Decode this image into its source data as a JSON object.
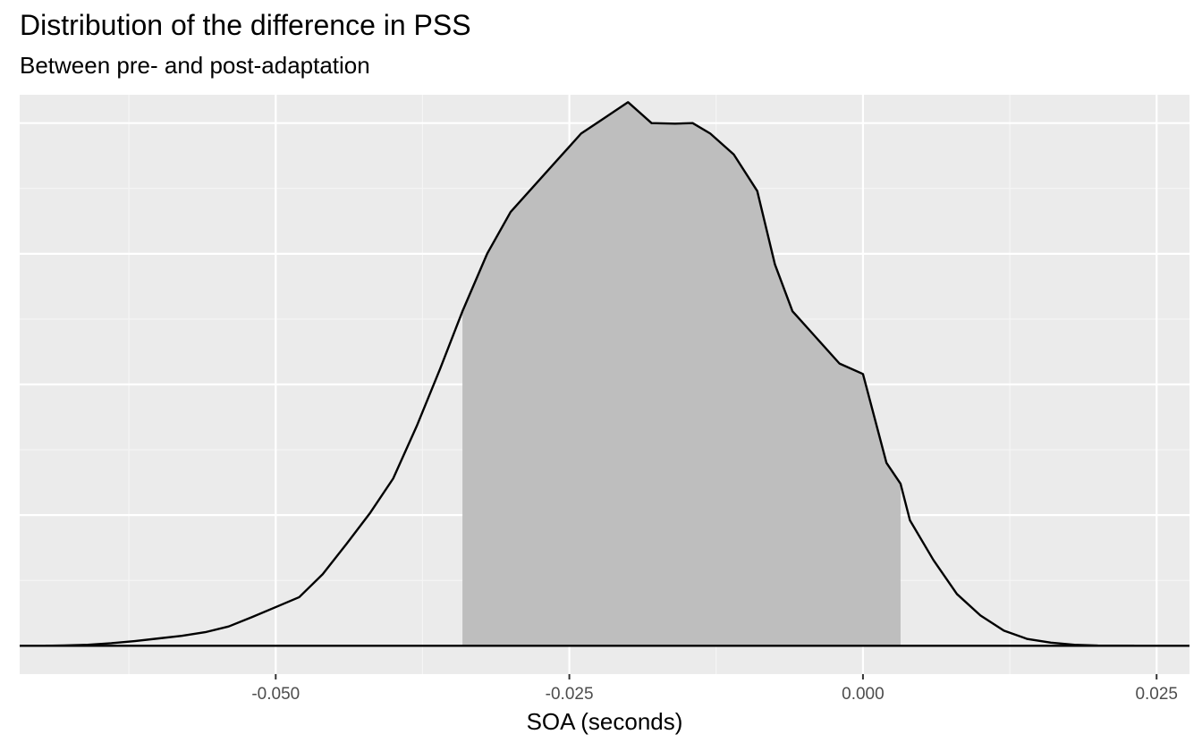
{
  "chart_data": {
    "type": "area",
    "title": "Distribution of the difference in PSS",
    "subtitle": "Between pre- and post-adaptation",
    "xlabel": "SOA (seconds)",
    "ylabel": "",
    "xlim": [
      -0.0718,
      0.0278
    ],
    "ylim": [
      -0.0542,
      1.0542
    ],
    "x_ticks": [
      -0.05,
      -0.025,
      0.0,
      0.025
    ],
    "x_tick_labels": [
      "-0.050",
      "-0.025",
      "0.000",
      "0.025"
    ],
    "y_axis_labels_shown": false,
    "grid": true,
    "legend": "none",
    "reference_line_y": 0,
    "shaded_interval": [
      -0.0341,
      0.0032
    ],
    "series": [
      {
        "x": [
          -0.0696,
          -0.068,
          -0.066,
          -0.064,
          -0.062,
          -0.06,
          -0.058,
          -0.056,
          -0.054,
          -0.052,
          -0.05,
          -0.048,
          -0.046,
          -0.044,
          -0.042,
          -0.04,
          -0.038,
          -0.036,
          -0.0341,
          -0.032,
          -0.03,
          -0.028,
          -0.026,
          -0.024,
          -0.022,
          -0.02,
          -0.018,
          -0.016,
          -0.0145,
          -0.013,
          -0.011,
          -0.009,
          -0.0075,
          -0.006,
          -0.004,
          -0.002,
          0.0,
          0.002,
          0.0032,
          0.004,
          0.006,
          0.008,
          0.01,
          0.012,
          0.014,
          0.016,
          0.018,
          0.02,
          0.0231
        ],
        "density": [
          0.0,
          0.0006,
          0.002,
          0.005,
          0.009,
          0.014,
          0.019,
          0.026,
          0.037,
          0.055,
          0.074,
          0.093,
          0.137,
          0.194,
          0.253,
          0.32,
          0.42,
          0.53,
          0.64,
          0.75,
          0.83,
          0.88,
          0.93,
          0.98,
          1.01,
          1.04,
          1.0,
          0.999,
          1.0,
          0.98,
          0.94,
          0.87,
          0.73,
          0.64,
          0.59,
          0.54,
          0.52,
          0.35,
          0.31,
          0.24,
          0.164,
          0.099,
          0.058,
          0.029,
          0.013,
          0.006,
          0.002,
          0.0005,
          0.0
        ]
      }
    ],
    "colors": {
      "panel_background": "#ebebeb",
      "grid_major": "#ffffff",
      "grid_minor": "#f5f5f5",
      "area_fill": "#bebebe",
      "line": "#000000"
    }
  }
}
